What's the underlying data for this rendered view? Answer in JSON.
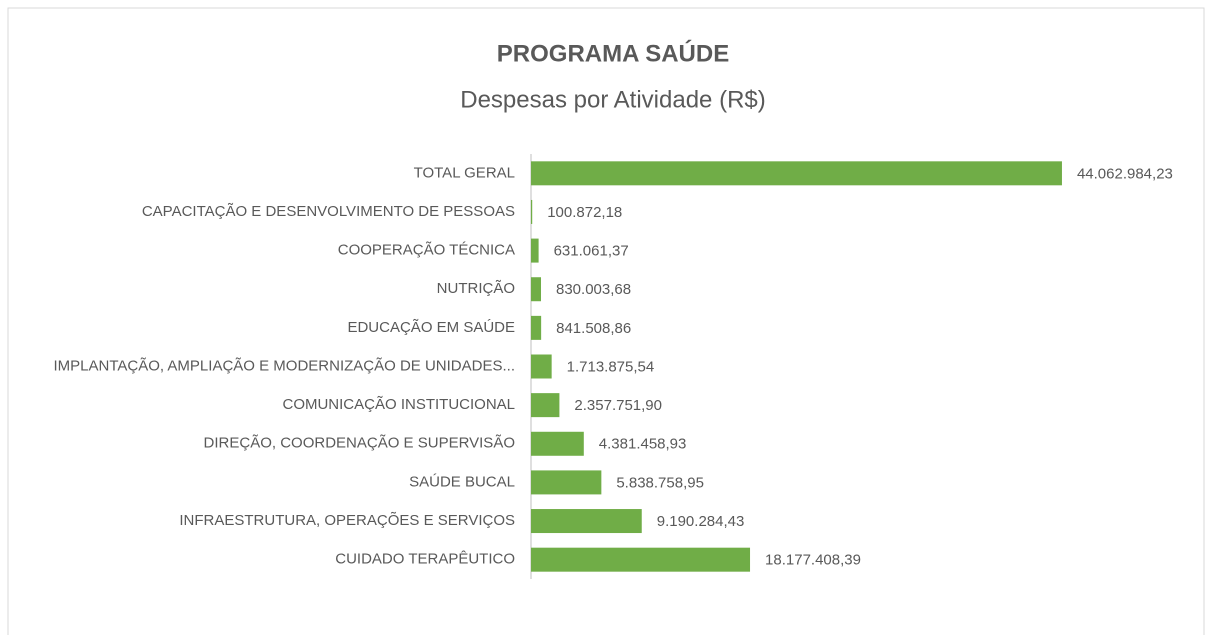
{
  "chart_data": {
    "type": "barh",
    "title": "PROGRAMA SAÚDE",
    "subtitle": "Despesas por Atividade (R$)",
    "categories": [
      "TOTAL GERAL",
      "CAPACITAÇÃO E DESENVOLVIMENTO DE PESSOAS",
      "COOPERAÇÃO TÉCNICA",
      "NUTRIÇÃO",
      "EDUCAÇÃO EM SAÚDE",
      "IMPLANTAÇÃO, AMPLIAÇÃO E MODERNIZAÇÃO DE UNIDADES...",
      "COMUNICAÇÃO INSTITUCIONAL",
      "DIREÇÃO, COORDENAÇÃO E SUPERVISÃO",
      "SAÚDE BUCAL",
      "INFRAESTRUTURA, OPERAÇÕES E SERVIÇOS",
      "CUIDADO TERAPÊUTICO"
    ],
    "values": [
      44062984.23,
      100872.18,
      631061.37,
      830003.68,
      841508.86,
      1713875.54,
      2357751.9,
      4381458.93,
      5838758.95,
      9190284.43,
      18177408.39
    ],
    "value_labels": [
      "44.062.984,23",
      "100.872,18",
      "631.061,37",
      "830.003,68",
      "841.508,86",
      "1.713.875,54",
      "2.357.751,90",
      "4.381.458,93",
      "5.838.758,95",
      "9.190.284,43",
      "18.177.408,39"
    ],
    "color": "#70ad47",
    "xlim": [
      0,
      50000000
    ]
  }
}
